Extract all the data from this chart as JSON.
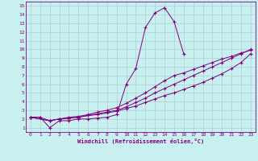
{
  "xlabel": "Windchill (Refroidissement éolien,°C)",
  "bg_color": "#c8f0f0",
  "line_color": "#800080",
  "grid_color": "#b0cece",
  "xlim": [
    -0.5,
    23.5
  ],
  "ylim": [
    0.5,
    15.5
  ],
  "xticks": [
    0,
    1,
    2,
    3,
    4,
    5,
    6,
    7,
    8,
    9,
    10,
    11,
    12,
    13,
    14,
    15,
    16,
    17,
    18,
    19,
    20,
    21,
    22,
    23
  ],
  "yticks": [
    1,
    2,
    3,
    4,
    5,
    6,
    7,
    8,
    9,
    10,
    11,
    12,
    13,
    14,
    15
  ],
  "series1_x": [
    0,
    1,
    2,
    3,
    4,
    5,
    6,
    7,
    8,
    9,
    10,
    11,
    12,
    13,
    14,
    15,
    16
  ],
  "series1_y": [
    2.2,
    2.2,
    1.0,
    1.8,
    1.8,
    2.0,
    2.0,
    2.1,
    2.2,
    2.5,
    6.0,
    7.8,
    12.5,
    14.2,
    14.8,
    13.2,
    9.5
  ],
  "series2_x": [
    0,
    1,
    2,
    3,
    4,
    5,
    6,
    7,
    8,
    9,
    10,
    11,
    12,
    13,
    14,
    15,
    16,
    17,
    18,
    19,
    20,
    21,
    22,
    23
  ],
  "series2_y": [
    2.2,
    2.2,
    1.8,
    2.0,
    2.1,
    2.2,
    2.4,
    2.5,
    2.7,
    2.9,
    3.2,
    3.5,
    3.9,
    4.3,
    4.7,
    5.0,
    5.4,
    5.8,
    6.2,
    6.7,
    7.2,
    7.8,
    8.5,
    9.5
  ],
  "series3_x": [
    0,
    2,
    3,
    4,
    5,
    6,
    7,
    8,
    9,
    10,
    11,
    12,
    13,
    14,
    15,
    16,
    17,
    18,
    19,
    20,
    21,
    22,
    23
  ],
  "series3_y": [
    2.2,
    1.8,
    2.0,
    2.1,
    2.2,
    2.4,
    2.6,
    2.8,
    3.0,
    3.4,
    3.9,
    4.4,
    5.0,
    5.5,
    6.0,
    6.5,
    7.0,
    7.5,
    8.0,
    8.5,
    9.0,
    9.5,
    10.0
  ],
  "series4_x": [
    0,
    2,
    3,
    4,
    5,
    6,
    7,
    8,
    9,
    10,
    11,
    12,
    13,
    14,
    15,
    16,
    17,
    18,
    19,
    20,
    21,
    22,
    23
  ],
  "series4_y": [
    2.2,
    1.8,
    2.0,
    2.2,
    2.3,
    2.5,
    2.8,
    3.0,
    3.3,
    3.8,
    4.4,
    5.0,
    5.7,
    6.4,
    7.0,
    7.3,
    7.7,
    8.1,
    8.5,
    8.9,
    9.2,
    9.6,
    9.9
  ]
}
